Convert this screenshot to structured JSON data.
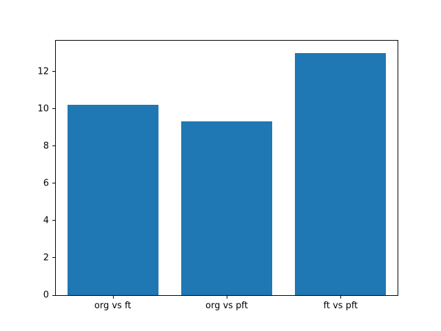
{
  "chart_data": {
    "type": "bar",
    "categories": [
      "org vs ft",
      "org vs pft",
      "ft vs pft"
    ],
    "values": [
      10.2,
      9.33,
      13.0
    ],
    "title": "",
    "xlabel": "",
    "ylabel": "",
    "ylim": [
      0,
      13.65
    ],
    "yticks": [
      0,
      2,
      4,
      6,
      8,
      10,
      12
    ],
    "bar_width_fraction": 0.8,
    "bar_color": "#1f77b4",
    "spine_color": "#000000",
    "background_color": "#ffffff",
    "grid": false,
    "legend": null
  }
}
